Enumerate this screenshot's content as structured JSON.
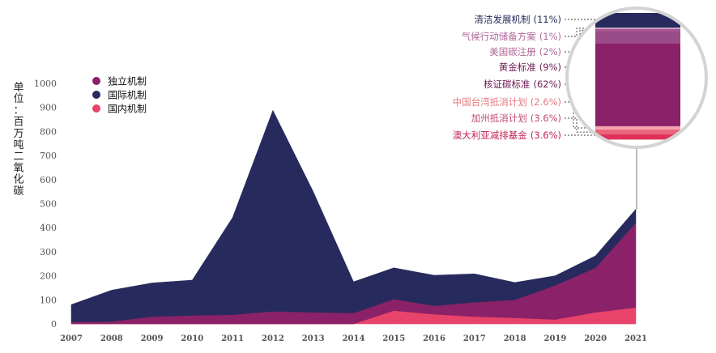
{
  "chart_data": {
    "type": "area",
    "stacked": true,
    "ylabel": "单位：百万吨二氧化碳",
    "ylim": [
      0,
      1000
    ],
    "yticks": [
      "0",
      "100",
      "200",
      "300",
      "400",
      "500",
      "600",
      "700",
      "800",
      "900",
      "1000"
    ],
    "x": [
      "2007",
      "2008",
      "2009",
      "2010",
      "2011",
      "2012",
      "2013",
      "2014",
      "2015",
      "2016",
      "2017",
      "2018",
      "2019",
      "2020",
      "2021"
    ],
    "series": [
      {
        "name": "国内机制",
        "color": "#e8436a",
        "values": [
          0,
          0,
          0,
          0,
          0,
          0,
          0,
          0,
          55,
          40,
          30,
          25,
          18,
          48,
          68
        ]
      },
      {
        "name": "独立机制",
        "color": "#8b2168",
        "values": [
          8,
          10,
          30,
          35,
          38,
          52,
          48,
          45,
          48,
          35,
          60,
          75,
          142,
          185,
          352
        ]
      },
      {
        "name": "国际机制",
        "color": "#272a5c",
        "values": [
          72,
          130,
          140,
          147,
          404,
          836,
          502,
          130,
          130,
          127,
          118,
          72,
          40,
          50,
          57
        ]
      }
    ],
    "legend": {
      "position": "top-left",
      "items": [
        {
          "label": "独立机制",
          "color": "#8b2168"
        },
        {
          "label": "国际机制",
          "color": "#272a5c"
        },
        {
          "label": "国内机制",
          "color": "#e8436a"
        }
      ]
    },
    "inset": {
      "description_year": "2021",
      "items": [
        {
          "label": "清洁发展机制",
          "value": "(11%)",
          "color": "#272a5c",
          "text_color": "#272a5c",
          "share": 11
        },
        {
          "label": "气候行动储备方案",
          "value": "(1%)",
          "color": "#d9b6cd",
          "text_color": "#b06a99",
          "share": 1
        },
        {
          "label": "美国碳注册",
          "value": "(2%)",
          "color": "#a85593",
          "text_color": "#b06a99",
          "share": 2
        },
        {
          "label": "黄金标准",
          "value": "(9%)",
          "color": "#9a4c89",
          "text_color": "#6d1a55",
          "share": 9
        },
        {
          "label": "核证碳标准",
          "value": "(62%)",
          "color": "#8b2168",
          "text_color": "#6d1a55",
          "share": 62
        },
        {
          "label": "中国台湾抵消计划",
          "value": "(2.6%)",
          "color": "#f2a3b0",
          "text_color": "#e5797f",
          "share": 2.6
        },
        {
          "label": "加州抵消计划",
          "value": "(3.6%)",
          "color": "#e9657c",
          "text_color": "#c04a72",
          "share": 3.6
        },
        {
          "label": "澳大利亚减排基金",
          "value": "(3.6%)",
          "color": "#e03159",
          "text_color": "#c21f4f",
          "share": 3.6
        }
      ]
    }
  }
}
